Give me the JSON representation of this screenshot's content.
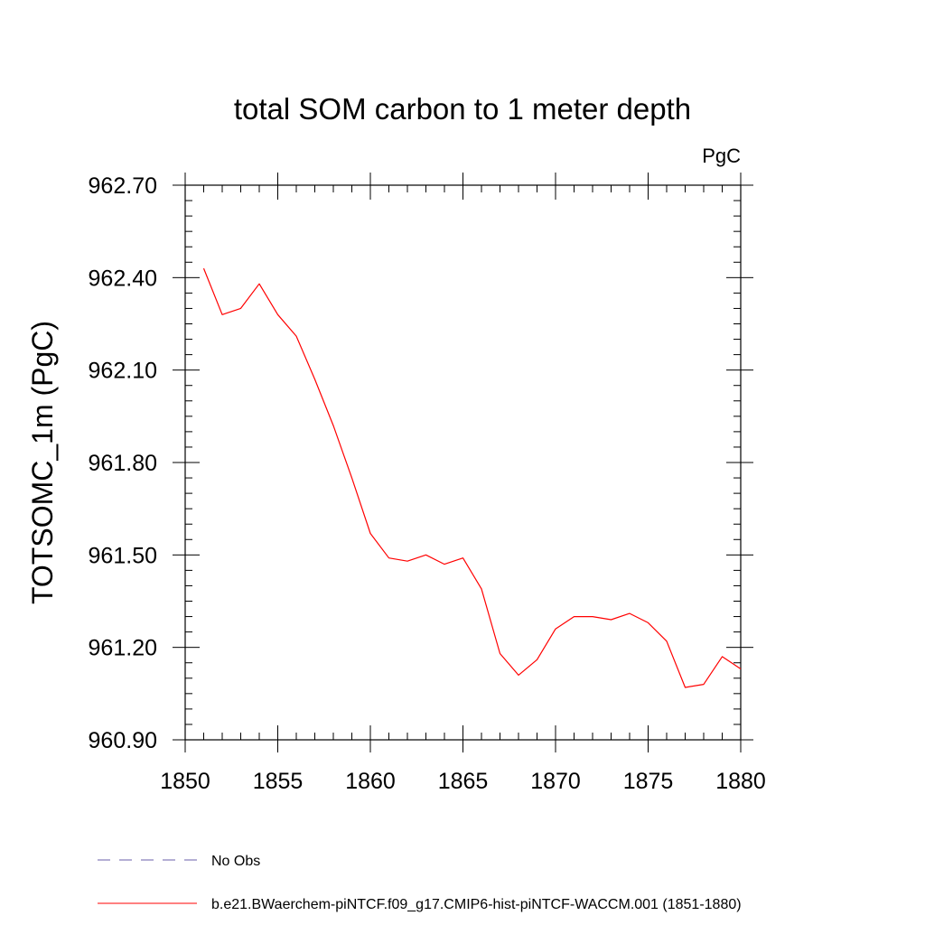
{
  "chart_data": {
    "type": "line",
    "title": "total SOM carbon to 1 meter depth",
    "units": "PgC",
    "xlabel": "",
    "ylabel": "TOTSOMC_1m  (PgC)",
    "xlim": [
      1850,
      1880
    ],
    "ylim": [
      960.9,
      962.7
    ],
    "xticks": [
      1850,
      1855,
      1860,
      1865,
      1870,
      1875,
      1880
    ],
    "yticks": [
      "962.70",
      "962.40",
      "962.10",
      "961.80",
      "961.50",
      "961.20",
      "960.90"
    ],
    "grid": false,
    "legend_position": "bottom",
    "series": [
      {
        "name": "b.e21.BWaerchem-piNTCF.f09_g17.CMIP6-hist-piNTCF-WACCM.001 (1851-1880)",
        "color": "#ff0000",
        "dash": "solid",
        "x": [
          1851,
          1852,
          1853,
          1854,
          1855,
          1856,
          1857,
          1858,
          1859,
          1860,
          1861,
          1862,
          1863,
          1864,
          1865,
          1866,
          1867,
          1868,
          1869,
          1870,
          1871,
          1872,
          1873,
          1874,
          1875,
          1876,
          1877,
          1878,
          1879,
          1880
        ],
        "y": [
          962.43,
          962.28,
          962.3,
          962.38,
          962.28,
          962.21,
          962.07,
          961.92,
          961.75,
          961.57,
          961.49,
          961.48,
          961.5,
          961.47,
          961.49,
          961.39,
          961.18,
          961.11,
          961.16,
          961.26,
          961.3,
          961.3,
          961.29,
          961.31,
          961.28,
          961.22,
          961.07,
          961.08,
          961.17,
          961.13
        ]
      }
    ],
    "legend": [
      {
        "label": "No Obs",
        "color": "#6a5fa8",
        "dash": "dashed"
      },
      {
        "label": "b.e21.BWaerchem-piNTCF.f09_g17.CMIP6-hist-piNTCF-WACCM.001 (1851-1880)",
        "color": "#ff0000",
        "dash": "solid"
      }
    ]
  }
}
